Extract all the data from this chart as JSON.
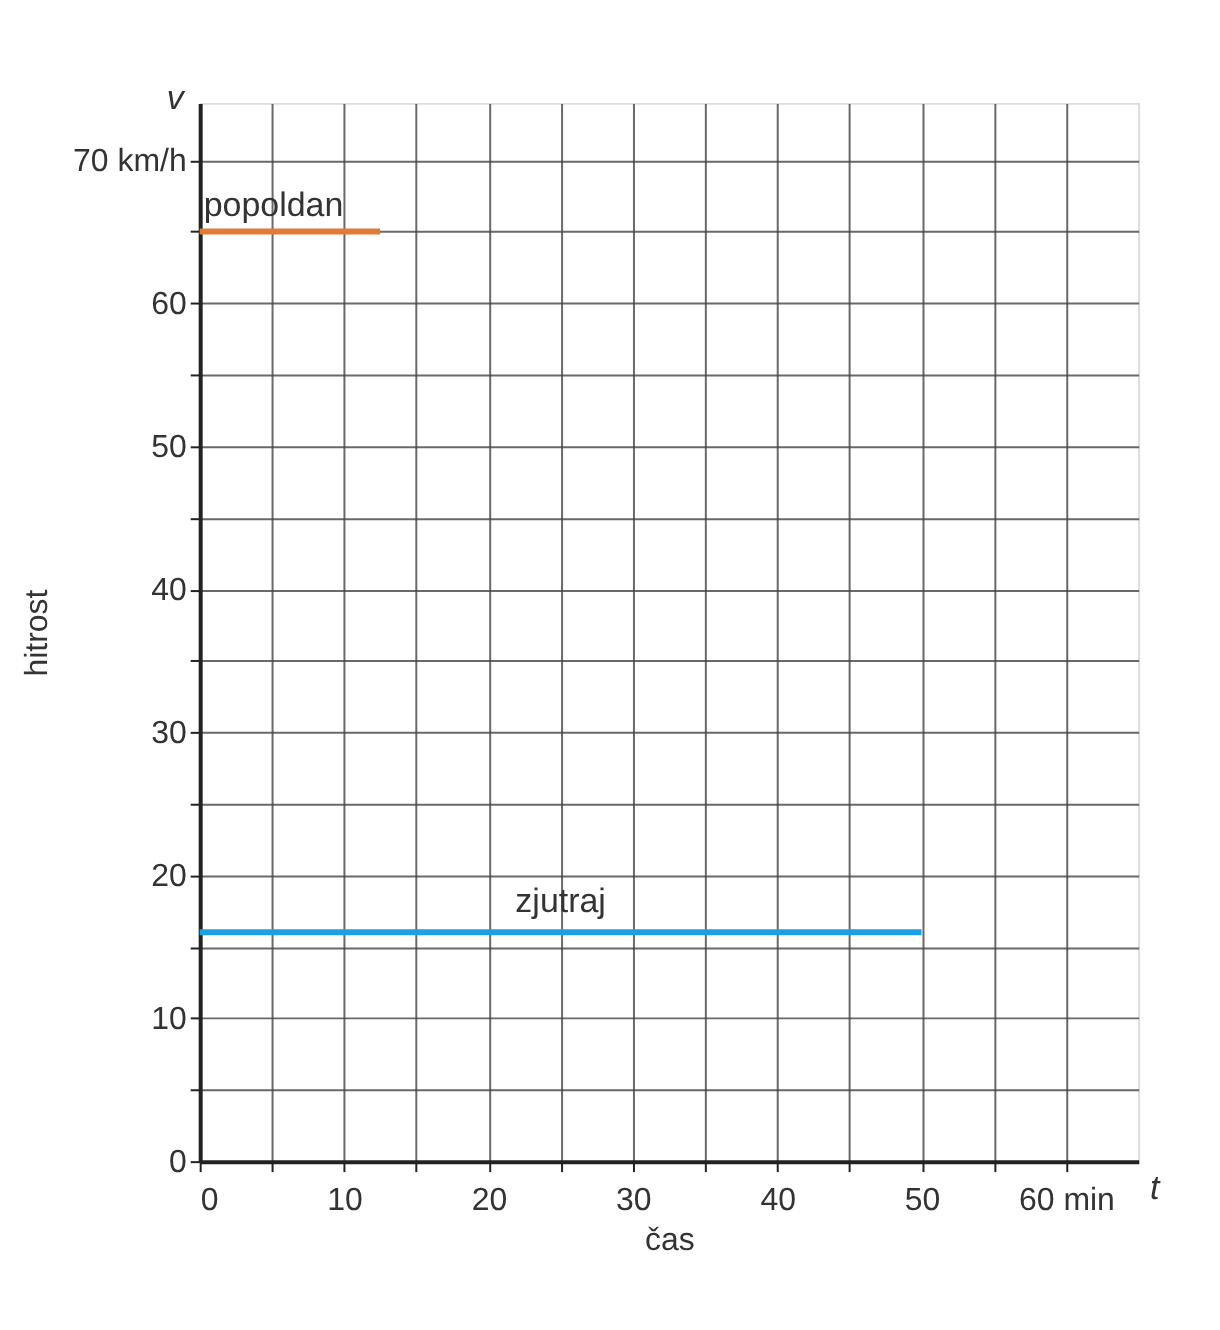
{
  "chart_data": {
    "type": "line",
    "xlabel": "čas",
    "ylabel": "hitrost",
    "annotations": [
      "v",
      "t"
    ],
    "series": [
      {
        "name": "popoldan",
        "color": "#e07b39",
        "x": [
          0,
          12.5
        ],
        "values": [
          65,
          65
        ]
      },
      {
        "name": "zjutraj",
        "color": "#1ba1e2",
        "x": [
          0,
          50
        ],
        "values": [
          16,
          16
        ]
      }
    ],
    "xlim": [
      0,
      65
    ],
    "ylim": [
      0,
      74
    ],
    "xticks": [
      0,
      {
        "value": 5,
        "label": null
      },
      10,
      {
        "value": 15,
        "label": null
      },
      20,
      {
        "value": 25,
        "label": null
      },
      30,
      {
        "value": 35,
        "label": null
      },
      40,
      {
        "value": 45,
        "label": null
      },
      50,
      {
        "value": 55,
        "label": null
      },
      {
        "value": 60,
        "label": "60 min"
      }
    ],
    "yticks": [
      0,
      {
        "value": 5,
        "label": null
      },
      10,
      {
        "value": 15,
        "label": null
      },
      20,
      {
        "value": 25,
        "label": null
      },
      30,
      {
        "value": 35,
        "label": null
      },
      40,
      {
        "value": 45,
        "label": null
      },
      50,
      {
        "value": 55,
        "label": null
      },
      60,
      {
        "value": 65,
        "label": null
      },
      {
        "value": 70,
        "label": "70 km/h"
      }
    ],
    "grid": true,
    "marker": "none",
    "line_style": "solid"
  }
}
